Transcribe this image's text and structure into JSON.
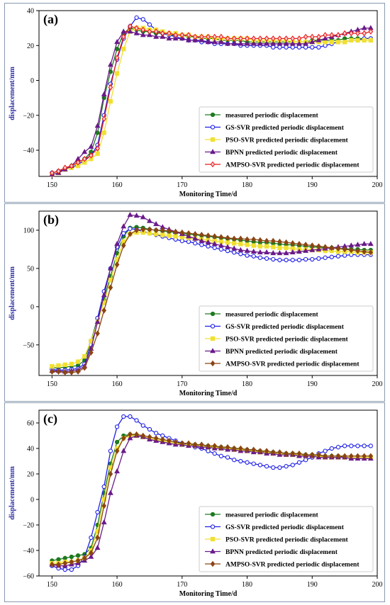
{
  "colors": {
    "frame": "#8a9bb0",
    "ylabel": "#2a2aa0",
    "measured": "#1e7a1e",
    "gs": "#1f1fe6",
    "pso": "#f0e030",
    "bpnn": "#6a1a8a",
    "ampso_a": "#e81c1c",
    "ampso_bc": "#8b4513"
  },
  "chart_data": [
    {
      "type": "line",
      "panel_label": "(a)",
      "xlabel": "Monitoring Time/d",
      "ylabel": "displacement/mm",
      "xlim": [
        148,
        200
      ],
      "ylim": [
        -55,
        40
      ],
      "xticks": [
        150,
        160,
        170,
        180,
        190,
        200
      ],
      "yticks": [
        -40,
        -20,
        0,
        20,
        40
      ],
      "legend_position": "bottom-right",
      "x": [
        150,
        151,
        152,
        153,
        154,
        155,
        156,
        157,
        158,
        159,
        160,
        161,
        162,
        163,
        164,
        165,
        166,
        167,
        168,
        169,
        170,
        171,
        172,
        173,
        174,
        175,
        176,
        177,
        178,
        179,
        180,
        181,
        182,
        183,
        184,
        185,
        186,
        187,
        188,
        189,
        190,
        191,
        192,
        193,
        194,
        195,
        196,
        197,
        198,
        199
      ],
      "series": [
        {
          "name": "measured periodic displacement",
          "marker": "circle",
          "values": [
            -53,
            -52,
            -51,
            -49,
            -47,
            -45,
            -41,
            -30,
            -10,
            5,
            18,
            27,
            30,
            29,
            28,
            28,
            27,
            27,
            26,
            26,
            26,
            25,
            25,
            24,
            24,
            24,
            23,
            23,
            23,
            23,
            22,
            22,
            22,
            22,
            22,
            22,
            22,
            22,
            22,
            22,
            23,
            23,
            23,
            23,
            23,
            24,
            24,
            24,
            24,
            24
          ]
        },
        {
          "name": "GS-SVR predicted periodic displacement",
          "marker": "circle",
          "values": [
            -53,
            -52,
            -51,
            -50,
            -48,
            -46,
            -43,
            -37,
            -20,
            -2,
            12,
            24,
            31,
            36,
            35,
            32,
            29,
            27,
            26,
            25,
            24,
            23,
            23,
            22,
            22,
            21,
            21,
            21,
            21,
            20,
            20,
            20,
            20,
            20,
            19,
            19,
            19,
            19,
            19,
            19,
            19,
            19,
            20,
            21,
            22,
            22,
            23,
            23,
            24,
            24
          ]
        },
        {
          "name": "PSO-SVR predicted periodic displacement",
          "marker": "square",
          "values": [
            -54,
            -53,
            -51,
            -50,
            -49,
            -47,
            -45,
            -42,
            -30,
            -12,
            4,
            18,
            28,
            30,
            30,
            29,
            29,
            28,
            27,
            27,
            26,
            26,
            25,
            25,
            25,
            24,
            24,
            24,
            24,
            24,
            24,
            23,
            23,
            23,
            23,
            23,
            23,
            22,
            22,
            22,
            22,
            22,
            22,
            22,
            22,
            22,
            23,
            23,
            23,
            23
          ]
        },
        {
          "name": "BPNN predicted periodic displacement",
          "marker": "triangle",
          "values": [
            -54,
            -53,
            -51,
            -49,
            -45,
            -41,
            -38,
            -26,
            -8,
            9,
            22,
            28,
            28,
            27,
            26,
            26,
            25,
            25,
            24,
            24,
            24,
            23,
            23,
            23,
            22,
            22,
            22,
            21,
            21,
            21,
            21,
            21,
            21,
            21,
            21,
            21,
            21,
            21,
            21,
            21,
            22,
            23,
            24,
            25,
            26,
            27,
            28,
            29,
            30,
            30
          ]
        },
        {
          "name": "AMPSO-SVR predicted periodic displacement",
          "marker": "diamond",
          "values": [
            -53,
            -52,
            -50,
            -49,
            -47,
            -45,
            -43,
            -39,
            -22,
            -4,
            13,
            25,
            31,
            30,
            29,
            28,
            28,
            27,
            27,
            26,
            26,
            26,
            25,
            25,
            25,
            25,
            25,
            24,
            24,
            24,
            24,
            24,
            24,
            24,
            24,
            24,
            24,
            24,
            24,
            25,
            25,
            25,
            26,
            26,
            26,
            27,
            27,
            27,
            27,
            28
          ]
        }
      ]
    },
    {
      "type": "line",
      "panel_label": "(b)",
      "xlabel": "Monitoring Time/d",
      "ylabel": "displacement/mm",
      "xlim": [
        148,
        200
      ],
      "ylim": [
        -90,
        125
      ],
      "xticks": [
        150,
        160,
        170,
        180,
        190,
        200
      ],
      "yticks": [
        -50,
        0,
        50,
        100
      ],
      "legend_position": "bottom-right",
      "x": [
        150,
        151,
        152,
        153,
        154,
        155,
        156,
        157,
        158,
        159,
        160,
        161,
        162,
        163,
        164,
        165,
        166,
        167,
        168,
        169,
        170,
        171,
        172,
        173,
        174,
        175,
        176,
        177,
        178,
        179,
        180,
        181,
        182,
        183,
        184,
        185,
        186,
        187,
        188,
        189,
        190,
        191,
        192,
        193,
        194,
        195,
        196,
        197,
        198,
        199
      ],
      "series": [
        {
          "name": "measured periodic displacement",
          "marker": "circle",
          "values": [
            -80,
            -80,
            -79,
            -78,
            -77,
            -70,
            -45,
            -15,
            10,
            40,
            70,
            92,
            103,
            104,
            103,
            101,
            100,
            99,
            98,
            97,
            96,
            95,
            94,
            93,
            92,
            91,
            90,
            89,
            88,
            87,
            86,
            85,
            84,
            84,
            83,
            82,
            81,
            81,
            80,
            79,
            78,
            78,
            77,
            77,
            76,
            76,
            75,
            75,
            74,
            74
          ]
        },
        {
          "name": "GS-SVR predicted periodic displacement",
          "marker": "circle",
          "values": [
            -82,
            -83,
            -83,
            -82,
            -81,
            -75,
            -50,
            -15,
            20,
            50,
            78,
            96,
            102,
            101,
            98,
            96,
            94,
            92,
            90,
            88,
            86,
            85,
            83,
            81,
            79,
            77,
            75,
            73,
            71,
            69,
            67,
            66,
            64,
            63,
            62,
            61,
            61,
            61,
            61,
            62,
            62,
            63,
            64,
            65,
            66,
            67,
            68,
            68,
            68,
            68
          ]
        },
        {
          "name": "PSO-SVR predicted periodic displacement",
          "marker": "square",
          "values": [
            -78,
            -77,
            -76,
            -75,
            -72,
            -65,
            -45,
            -20,
            5,
            35,
            62,
            85,
            95,
            97,
            97,
            96,
            95,
            94,
            93,
            92,
            91,
            90,
            89,
            88,
            87,
            86,
            85,
            84,
            83,
            82,
            81,
            80,
            79,
            79,
            78,
            77,
            77,
            76,
            75,
            75,
            74,
            74,
            73,
            73,
            72,
            72,
            72,
            71,
            71,
            71
          ]
        },
        {
          "name": "BPNN predicted periodic displacement",
          "marker": "triangle",
          "values": [
            -84,
            -84,
            -85,
            -84,
            -83,
            -78,
            -55,
            -20,
            15,
            50,
            82,
            105,
            120,
            119,
            117,
            112,
            108,
            104,
            101,
            98,
            95,
            92,
            89,
            86,
            84,
            82,
            80,
            78,
            76,
            74,
            73,
            72,
            71,
            71,
            70,
            70,
            70,
            71,
            72,
            73,
            74,
            75,
            76,
            77,
            78,
            79,
            80,
            81,
            82,
            82
          ]
        },
        {
          "name": "AMPSO-SVR predicted periodic displacement",
          "marker": "diamond",
          "values": [
            -85,
            -85,
            -86,
            -86,
            -85,
            -80,
            -60,
            -35,
            -5,
            25,
            55,
            80,
            95,
            100,
            101,
            101,
            100,
            100,
            99,
            98,
            97,
            96,
            95,
            94,
            93,
            92,
            91,
            90,
            89,
            89,
            88,
            88,
            87,
            86,
            86,
            85,
            84,
            83,
            82,
            81,
            80,
            79,
            78,
            77,
            76,
            75,
            74,
            73,
            72,
            71
          ]
        }
      ]
    },
    {
      "type": "line",
      "panel_label": "(c)",
      "xlabel": "Monitoring Time/d",
      "ylabel": "displacement/mm",
      "xlim": [
        148,
        200
      ],
      "ylim": [
        -60,
        70
      ],
      "xticks": [
        150,
        160,
        170,
        180,
        190,
        200
      ],
      "yticks": [
        -60,
        -40,
        -20,
        0,
        20,
        40,
        60
      ],
      "legend_position": "bottom-right",
      "x": [
        150,
        151,
        152,
        153,
        154,
        155,
        156,
        157,
        158,
        159,
        160,
        161,
        162,
        163,
        164,
        165,
        166,
        167,
        168,
        169,
        170,
        171,
        172,
        173,
        174,
        175,
        176,
        177,
        178,
        179,
        180,
        181,
        182,
        183,
        184,
        185,
        186,
        187,
        188,
        189,
        190,
        191,
        192,
        193,
        194,
        195,
        196,
        197,
        198,
        199
      ],
      "series": [
        {
          "name": "measured periodic displacement",
          "marker": "circle",
          "values": [
            -48,
            -47,
            -46,
            -45,
            -44,
            -43,
            -38,
            -20,
            5,
            28,
            45,
            50,
            51,
            50,
            49,
            48,
            47,
            46,
            45,
            44,
            44,
            43,
            43,
            42,
            42,
            41,
            41,
            40,
            40,
            39,
            39,
            38,
            38,
            37,
            37,
            36,
            36,
            36,
            35,
            35,
            35,
            34,
            34,
            34,
            34,
            33,
            33,
            33,
            33,
            33
          ]
        },
        {
          "name": "GS-SVR predicted periodic displacement",
          "marker": "circle",
          "values": [
            -52,
            -54,
            -55,
            -55,
            -52,
            -45,
            -30,
            -10,
            10,
            38,
            57,
            65,
            65,
            62,
            58,
            55,
            52,
            50,
            48,
            46,
            44,
            43,
            41,
            40,
            38,
            36,
            34,
            33,
            31,
            30,
            29,
            28,
            27,
            26,
            25,
            25,
            26,
            27,
            29,
            31,
            33,
            36,
            38,
            40,
            41,
            42,
            42,
            42,
            42,
            42
          ]
        },
        {
          "name": "PSO-SVR predicted periodic displacement",
          "marker": "square",
          "values": [
            -50,
            -50,
            -49,
            -49,
            -48,
            -46,
            -40,
            -25,
            0,
            25,
            40,
            48,
            50,
            50,
            49,
            48,
            47,
            46,
            45,
            44,
            43,
            43,
            42,
            42,
            41,
            41,
            40,
            40,
            39,
            39,
            38,
            38,
            37,
            37,
            36,
            36,
            35,
            35,
            35,
            34,
            34,
            34,
            33,
            33,
            33,
            33,
            33,
            33,
            33,
            33
          ]
        },
        {
          "name": "BPNN predicted periodic displacement",
          "marker": "triangle",
          "values": [
            -51,
            -52,
            -52,
            -51,
            -50,
            -48,
            -45,
            -38,
            -18,
            5,
            22,
            38,
            48,
            50,
            49,
            47,
            46,
            45,
            44,
            43,
            43,
            42,
            42,
            41,
            41,
            40,
            40,
            39,
            39,
            38,
            38,
            37,
            37,
            36,
            36,
            35,
            35,
            35,
            34,
            34,
            34,
            33,
            33,
            33,
            33,
            33,
            32,
            32,
            32,
            32
          ]
        },
        {
          "name": "AMPSO-SVR predicted periodic displacement",
          "marker": "diamond",
          "values": [
            -51,
            -51,
            -50,
            -49,
            -48,
            -46,
            -42,
            -30,
            -5,
            20,
            38,
            48,
            51,
            51,
            50,
            49,
            48,
            47,
            46,
            45,
            44,
            44,
            43,
            43,
            42,
            42,
            41,
            41,
            40,
            40,
            39,
            39,
            38,
            38,
            37,
            37,
            36,
            36,
            36,
            35,
            35,
            35,
            34,
            34,
            34,
            34,
            34,
            34,
            34,
            34
          ]
        }
      ]
    }
  ]
}
